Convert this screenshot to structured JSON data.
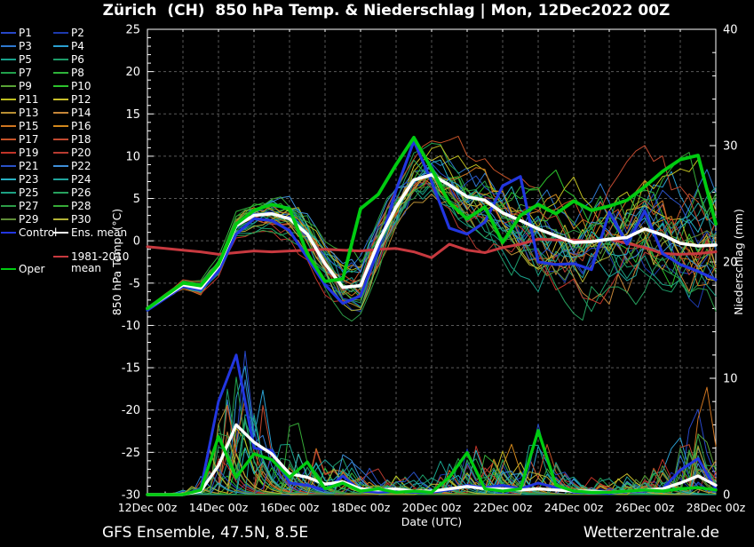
{
  "title": "Zürich  (CH)  850 hPa Temp. & Niederschlag | Mon, 12Dec2022 00Z",
  "footer": {
    "left": "GFS Ensemble, 47.5N, 8.5E",
    "right": "Wetterzentrale.de"
  },
  "axes": {
    "x_label": "Date (UTC)",
    "x_ticks": [
      "12Dec 00z",
      "14Dec 00z",
      "16Dec 00z",
      "18Dec 00z",
      "20Dec 00z",
      "22Dec 00z",
      "24Dec 00z",
      "26Dec 00z",
      "28Dec 00z"
    ],
    "y_left_label": "850 hPa Temp. (°C)",
    "y_left_range": [
      -30,
      25
    ],
    "y_left_label_step": 5,
    "y_right_label": "Niederschlag (mm)",
    "y_right_range": [
      0,
      40
    ],
    "y_right_label_step": 10,
    "grid_color": "rgba(255,255,255,0.35)"
  },
  "legend": {
    "members": [
      {
        "label": "P1",
        "color": "#2747c8"
      },
      {
        "label": "P2",
        "color": "#1d3aae"
      },
      {
        "label": "P3",
        "color": "#2e78cf"
      },
      {
        "label": "P4",
        "color": "#2a9fd0"
      },
      {
        "label": "P5",
        "color": "#18a28c"
      },
      {
        "label": "P6",
        "color": "#1d9c68"
      },
      {
        "label": "P7",
        "color": "#21a04b"
      },
      {
        "label": "P8",
        "color": "#2eb33a"
      },
      {
        "label": "P9",
        "color": "#58a335"
      },
      {
        "label": "P10",
        "color": "#2cc22c"
      },
      {
        "label": "P11",
        "color": "#bfbf20"
      },
      {
        "label": "P12",
        "color": "#c9bf2b"
      },
      {
        "label": "P13",
        "color": "#b98f33"
      },
      {
        "label": "P14",
        "color": "#c68638"
      },
      {
        "label": "P15",
        "color": "#cf7520"
      },
      {
        "label": "P16",
        "color": "#d2881c"
      },
      {
        "label": "P17",
        "color": "#c65328"
      },
      {
        "label": "P18",
        "color": "#c24a30"
      },
      {
        "label": "P19",
        "color": "#c13428"
      },
      {
        "label": "P20",
        "color": "#b83b31"
      },
      {
        "label": "P21",
        "color": "#2951c6"
      },
      {
        "label": "P22",
        "color": "#3e8ed8"
      },
      {
        "label": "P23",
        "color": "#27b0c2"
      },
      {
        "label": "P24",
        "color": "#20a49c"
      },
      {
        "label": "P25",
        "color": "#1da183"
      },
      {
        "label": "P26",
        "color": "#27a15e"
      },
      {
        "label": "P27",
        "color": "#2c9c47"
      },
      {
        "label": "P28",
        "color": "#36aa37"
      },
      {
        "label": "P29",
        "color": "#5f8d37"
      },
      {
        "label": "P30",
        "color": "#b2b235"
      }
    ],
    "control": {
      "label": "Control",
      "color": "#2236e0"
    },
    "ens_mean": {
      "label": "Ens. mean",
      "color": "#ffffff"
    },
    "clim": {
      "label": "1981-2010 mean",
      "label_line1": "1981-2010",
      "label_line2": "mean",
      "color": "#c8393f"
    },
    "oper": {
      "label": "Oper",
      "color": "#00cc11"
    }
  },
  "chart_data": {
    "type": "line",
    "x_hours_step": 12,
    "x_range_hours": [
      0,
      384
    ],
    "temp_axis_range": [
      -30,
      25
    ],
    "precip_axis_range": [
      0,
      40
    ],
    "ens_mean_temp": [
      -8.0,
      -6.6,
      -5.2,
      -5.6,
      -3.0,
      1.8,
      3.0,
      3.2,
      2.6,
      0.8,
      -2.7,
      -5.5,
      -5.3,
      -0.2,
      4.0,
      7.2,
      7.8,
      6.6,
      5.2,
      4.8,
      3.3,
      2.4,
      1.4,
      0.6,
      -0.2,
      -0.1,
      0.2,
      0.4,
      1.4,
      0.7,
      -0.3,
      -0.6,
      -0.5
    ],
    "control_temp": [
      -8.2,
      -6.8,
      -5.4,
      -5.8,
      -3.6,
      0.8,
      2.6,
      2.4,
      1.2,
      -2.0,
      -5.2,
      -7.4,
      -6.5,
      -1.0,
      6.0,
      11.8,
      7.0,
      1.5,
      0.8,
      2.2,
      6.5,
      7.6,
      -2.5,
      -2.8,
      -2.7,
      -3.4,
      3.4,
      -0.4,
      3.5,
      -1.5,
      -2.8,
      -3.6,
      -4.6
    ],
    "oper_temp": [
      -8.0,
      -6.5,
      -5.0,
      -5.3,
      -2.8,
      2.0,
      3.6,
      4.3,
      3.8,
      -1.5,
      -4.8,
      -4.5,
      3.8,
      5.5,
      9.0,
      12.2,
      8.5,
      4.5,
      2.6,
      4.0,
      -0.2,
      3.0,
      4.3,
      3.2,
      4.7,
      3.6,
      4.1,
      4.8,
      6.4,
      8.2,
      9.6,
      10.1,
      2.0
    ],
    "clim_temp": [
      -0.7,
      -0.9,
      -1.1,
      -1.3,
      -1.6,
      -1.4,
      -1.2,
      -1.3,
      -1.2,
      -1.1,
      -1.0,
      -1.1,
      -1.2,
      -1.0,
      -0.9,
      -1.3,
      -2.0,
      -0.4,
      -1.1,
      -1.4,
      -0.8,
      -0.4,
      0.2,
      0.1,
      0.1,
      -0.1,
      0.2,
      -0.3,
      -0.8,
      -1.5,
      -1.6,
      -1.5,
      -1.3
    ],
    "ens_mean_precip": [
      0,
      0,
      0,
      0.3,
      2.5,
      6.0,
      4.5,
      3.5,
      1.8,
      1.5,
      0.9,
      1.1,
      0.5,
      0.4,
      0.5,
      0.3,
      0.3,
      0.5,
      0.7,
      0.5,
      0.5,
      0.4,
      0.5,
      0.4,
      0.3,
      0.3,
      0.2,
      0.3,
      0.4,
      0.5,
      1.0,
      1.6,
      0.8
    ],
    "control_precip": [
      0,
      0,
      0,
      0.5,
      8.0,
      12.0,
      4.0,
      3.8,
      1.0,
      0.8,
      0.4,
      1.6,
      0.3,
      0.2,
      0.3,
      0.2,
      0.2,
      0.4,
      0.8,
      0.6,
      0.8,
      0.5,
      1.0,
      0.6,
      0.2,
      0.2,
      0.1,
      0.3,
      0.3,
      0.5,
      2.1,
      3.1,
      0.5
    ],
    "oper_precip": [
      0,
      0,
      0,
      0.4,
      5.0,
      1.5,
      3.5,
      3.0,
      1.5,
      2.8,
      0.5,
      1.0,
      0.3,
      0.5,
      0.2,
      0.3,
      0.2,
      1.5,
      3.6,
      0.5,
      0.3,
      0.5,
      5.5,
      0.8,
      0.3,
      0.2,
      0.2,
      0.3,
      0.4,
      0.3,
      0.5,
      0.6,
      0.4
    ],
    "ensemble_members": {
      "count": 30,
      "seed": 42,
      "temp_spread": [
        0.15,
        0.3,
        0.5,
        0.7,
        0.9,
        1.3,
        1.6,
        2.0,
        2.4,
        2.8,
        3.0,
        3.2,
        3.4,
        3.3,
        3.2,
        3.4,
        3.6,
        4.0,
        4.4,
        4.8,
        5.2,
        5.5,
        5.8,
        6.0,
        6.2,
        6.4,
        6.6,
        6.8,
        7.0,
        7.2,
        7.4,
        7.6,
        7.8
      ],
      "precip_envelope": [
        0,
        0,
        0.3,
        2,
        9,
        11,
        8,
        7,
        5,
        4,
        3,
        3,
        2,
        1.5,
        2,
        1.5,
        1.5,
        3,
        5,
        4,
        4,
        3,
        5,
        3,
        2,
        1.5,
        1.2,
        1.5,
        2,
        3,
        6,
        9,
        5
      ]
    }
  }
}
